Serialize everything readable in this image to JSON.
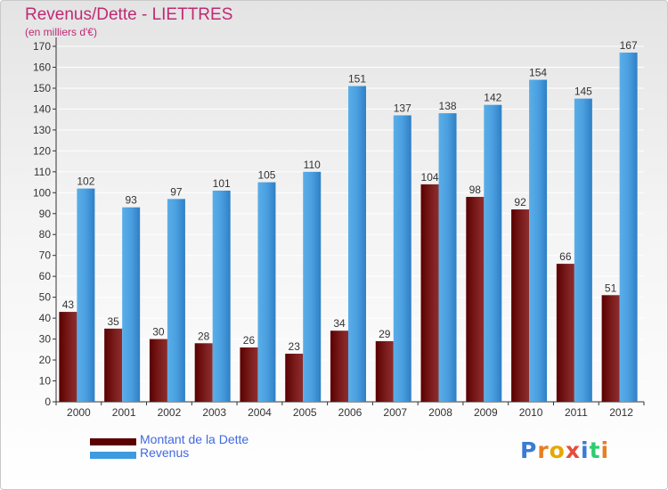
{
  "title": "Revenus/Dette - LIETTRES",
  "subtitle": "(en milliers d'€)",
  "logo": "Proxiti",
  "colors": {
    "dette": "#7a1a1a",
    "revenus": "#4da3e3",
    "title": "#c02a73",
    "legend_text": "#4169e1"
  },
  "legend": [
    {
      "label": "Montant de la Dette",
      "color": "#5a0000"
    },
    {
      "label": "Revenus",
      "color": "#3d9be0"
    }
  ],
  "chart_data": {
    "type": "bar",
    "title": "Revenus/Dette - LIETTRES",
    "ylabel": "(en milliers d'€)",
    "categories": [
      "2000",
      "2001",
      "2002",
      "2003",
      "2004",
      "2005",
      "2006",
      "2007",
      "2008",
      "2009",
      "2010",
      "2011",
      "2012"
    ],
    "series": [
      {
        "name": "Montant de la Dette",
        "values": [
          43,
          35,
          30,
          28,
          26,
          23,
          34,
          29,
          104,
          98,
          92,
          66,
          51
        ]
      },
      {
        "name": "Revenus",
        "values": [
          102,
          93,
          97,
          101,
          105,
          110,
          151,
          137,
          138,
          142,
          154,
          145,
          167
        ]
      }
    ],
    "ylim": [
      0,
      170
    ],
    "yticks": [
      0,
      10,
      20,
      30,
      40,
      50,
      60,
      70,
      80,
      90,
      100,
      110,
      120,
      130,
      140,
      150,
      160,
      170
    ],
    "grid": true,
    "legend_position": "bottom-left"
  }
}
